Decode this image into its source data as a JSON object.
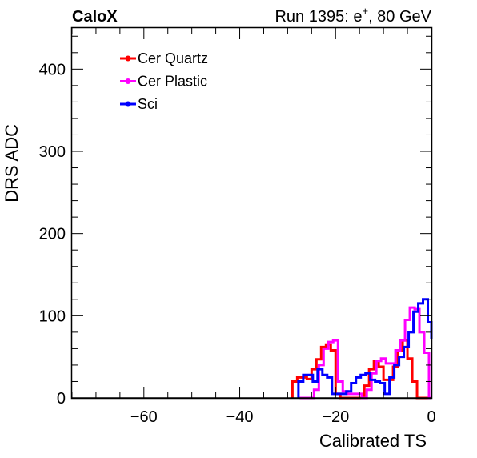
{
  "header": {
    "left": "CaloX",
    "right_prefix": "Run 1395: e",
    "right_sup": "+",
    "right_suffix": ", 80 GeV"
  },
  "chart_data": {
    "type": "line",
    "style": "step-histogram",
    "xlabel": "Calibrated TS",
    "ylabel": "DRS ADC",
    "xlim": [
      -75,
      0
    ],
    "ylim": [
      0,
      450
    ],
    "x_ticks": [
      -60,
      -40,
      -20,
      0
    ],
    "x_tick_labels": [
      "−60",
      "−40",
      "−20",
      "0"
    ],
    "y_ticks": [
      0,
      100,
      200,
      300,
      400
    ],
    "y_tick_labels": [
      "0",
      "100",
      "200",
      "300",
      "400"
    ],
    "grid": false,
    "legend_position": "top-left",
    "bin_width": 1,
    "series": [
      {
        "name": "Cer Quartz",
        "color": "#ff0000",
        "x": [
          -29,
          -28,
          -27,
          -26,
          -25,
          -24,
          -23,
          -22,
          -21,
          -20,
          -19,
          -18,
          -17,
          -16,
          -15,
          -14,
          -13,
          -12,
          -11,
          -10,
          -9,
          -8,
          -7,
          -6,
          -5,
          -4,
          -3,
          -2,
          -1
        ],
        "values": [
          20,
          25,
          25,
          23,
          35,
          47,
          62,
          65,
          58,
          5,
          0,
          0,
          0,
          0,
          0,
          15,
          35,
          45,
          38,
          22,
          22,
          38,
          58,
          70,
          48,
          20,
          0,
          0,
          0
        ]
      },
      {
        "name": "Cer Plastic",
        "color": "#ff00ff",
        "x": [
          -28,
          -27,
          -26,
          -25,
          -24,
          -23,
          -22,
          -21,
          -20,
          -19,
          -18,
          -17,
          -16,
          -15,
          -14,
          -13,
          -12,
          -11,
          -10,
          -9,
          -8,
          -7,
          -6,
          -5,
          -4,
          -3,
          -2,
          -1
        ],
        "values": [
          0,
          0,
          0,
          10,
          40,
          60,
          68,
          70,
          20,
          8,
          5,
          5,
          5,
          0,
          10,
          30,
          45,
          48,
          42,
          42,
          58,
          70,
          95,
          110,
          108,
          80,
          55,
          0
        ],
        "x_shift": 0.5
      },
      {
        "name": "Sci",
        "color": "#0000ff",
        "x": [
          -28,
          -27,
          -26,
          -25,
          -24,
          -23,
          -22,
          -21,
          -20,
          -19,
          -18,
          -17,
          -16,
          -15,
          -14,
          -13,
          -12,
          -11,
          -10,
          -9,
          -8,
          -7,
          -6,
          -5,
          -4,
          -3,
          -2,
          -1
        ],
        "values": [
          20,
          28,
          28,
          20,
          35,
          28,
          25,
          5,
          5,
          5,
          8,
          18,
          25,
          28,
          30,
          22,
          20,
          18,
          5,
          25,
          40,
          50,
          62,
          80,
          105,
          115,
          120,
          92
        ],
        "x_shift": 0.25,
        "tail": 72
      },
      {
        "name": "",
        "color": "#000000",
        "x": [
          -75
        ],
        "values": [
          0
        ]
      }
    ]
  },
  "legend": {
    "items": [
      {
        "label": "Cer Quartz",
        "color": "#ff0000"
      },
      {
        "label": "Cer Plastic",
        "color": "#ff00ff"
      },
      {
        "label": "Sci",
        "color": "#0000ff"
      }
    ]
  }
}
